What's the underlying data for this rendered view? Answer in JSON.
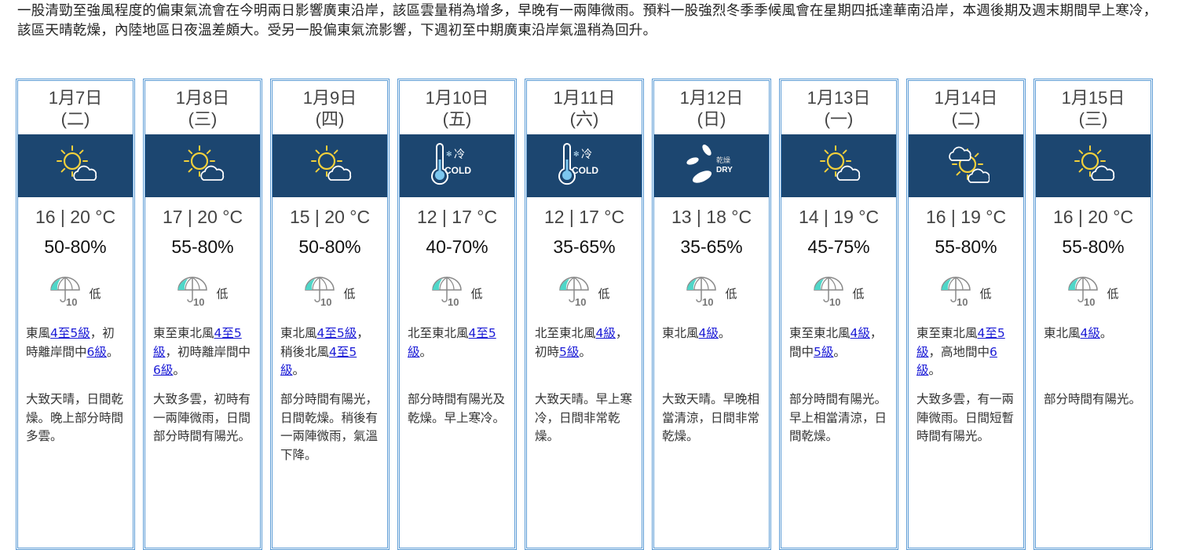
{
  "summary": "一股清勁至強風程度的偏東氣流會在今明兩日影響廣東沿岸，該區雲量稍為增多，早晚有一兩陣微雨。預料一股強烈冬季季候風會在星期四抵達華南沿岸，本週後期及週末期間早上寒冷，該區天晴乾燥，內陸地區日夜溫差頗大。受另一股偏東氣流影響，下週初至中期廣東沿岸氣溫稍為回升。",
  "colors": {
    "band": "#1c4670",
    "border": "#5b9bd5",
    "link": "#1a1ad6",
    "umbrella": "#4fd6c8"
  },
  "days": [
    {
      "date": "1月7日",
      "weekday": "(二)",
      "icon": "sunny-periods-icon",
      "temp": "16 | 20 °C",
      "rh": "50-80%",
      "psr_value": "10",
      "psr": "低",
      "wind": [
        {
          "t": "東風"
        },
        {
          "t": "4至5級",
          "link": true
        },
        {
          "t": "，初時離岸間中"
        },
        {
          "t": "6級",
          "link": true
        },
        {
          "t": "。"
        }
      ],
      "desc": "大致天晴，日間乾燥。晚上部分時間多雲。"
    },
    {
      "date": "1月8日",
      "weekday": "(三)",
      "icon": "sunny-periods-icon",
      "temp": "17 | 20 °C",
      "rh": "55-80%",
      "psr_value": "10",
      "psr": "低",
      "wind": [
        {
          "t": "東至東北風"
        },
        {
          "t": "4至5級",
          "link": true
        },
        {
          "t": "，初時離岸間中"
        },
        {
          "t": "6級",
          "link": true
        },
        {
          "t": "。"
        }
      ],
      "desc": "大致多雲，初時有一兩陣微雨，日間部分時間有陽光。"
    },
    {
      "date": "1月9日",
      "weekday": "(四)",
      "icon": "sunny-periods-icon",
      "temp": "15 | 20 °C",
      "rh": "50-80%",
      "psr_value": "10",
      "psr": "低",
      "wind": [
        {
          "t": "東北風"
        },
        {
          "t": "4至5級",
          "link": true
        },
        {
          "t": "，稍後北風"
        },
        {
          "t": "4至5級",
          "link": true
        },
        {
          "t": "。"
        }
      ],
      "desc": "部分時間有陽光，日間乾燥。稍後有一兩陣微雨，氣溫下降。"
    },
    {
      "date": "1月10日",
      "weekday": "(五)",
      "icon": "cold-icon",
      "icon_text": "冷",
      "icon_text_en": "COLD",
      "temp": "12 | 17 °C",
      "rh": "40-70%",
      "psr_value": "10",
      "psr": "低",
      "wind": [
        {
          "t": "北至東北風"
        },
        {
          "t": "4至5級",
          "link": true
        },
        {
          "t": "。"
        }
      ],
      "desc": "部分時間有陽光及乾燥。早上寒冷。"
    },
    {
      "date": "1月11日",
      "weekday": "(六)",
      "icon": "cold-icon",
      "icon_text": "冷",
      "icon_text_en": "COLD",
      "temp": "12 | 17 °C",
      "rh": "35-65%",
      "psr_value": "10",
      "psr": "低",
      "wind": [
        {
          "t": "北至東北風"
        },
        {
          "t": "4級",
          "link": true
        },
        {
          "t": "，初時"
        },
        {
          "t": "5級",
          "link": true
        },
        {
          "t": "。"
        }
      ],
      "desc": "大致天晴。早上寒冷，日間非常乾燥。"
    },
    {
      "date": "1月12日",
      "weekday": "(日)",
      "icon": "dry-icon",
      "icon_text": "乾燥",
      "icon_text_en": "DRY",
      "temp": "13 | 18 °C",
      "rh": "35-65%",
      "psr_value": "10",
      "psr": "低",
      "wind": [
        {
          "t": "東北風"
        },
        {
          "t": "4級",
          "link": true
        },
        {
          "t": "。"
        }
      ],
      "desc": "大致天晴。早晚相當清涼，日間非常乾燥。"
    },
    {
      "date": "1月13日",
      "weekday": "(一)",
      "icon": "sunny-periods-icon",
      "temp": "14 | 19 °C",
      "rh": "45-75%",
      "psr_value": "10",
      "psr": "低",
      "wind": [
        {
          "t": "東至東北風"
        },
        {
          "t": "4級",
          "link": true
        },
        {
          "t": "，間中"
        },
        {
          "t": "5級",
          "link": true
        },
        {
          "t": "。"
        }
      ],
      "desc": "部分時間有陽光。早上相當清涼，日間乾燥。"
    },
    {
      "date": "1月14日",
      "weekday": "(二)",
      "icon": "mostly-cloudy-icon",
      "temp": "16 | 19 °C",
      "rh": "55-80%",
      "psr_value": "10",
      "psr": "低",
      "wind": [
        {
          "t": "東至東北風"
        },
        {
          "t": "4至5級",
          "link": true
        },
        {
          "t": "，高地間中"
        },
        {
          "t": "6級",
          "link": true
        },
        {
          "t": "。"
        }
      ],
      "desc": "大致多雲，有一兩陣微雨。日間短暫時間有陽光。"
    },
    {
      "date": "1月15日",
      "weekday": "(三)",
      "icon": "sunny-periods-icon",
      "temp": "16 | 20 °C",
      "rh": "55-80%",
      "psr_value": "10",
      "psr": "低",
      "wind": [
        {
          "t": "東北風"
        },
        {
          "t": "4級",
          "link": true
        },
        {
          "t": "。"
        }
      ],
      "desc": "部分時間有陽光。"
    }
  ]
}
